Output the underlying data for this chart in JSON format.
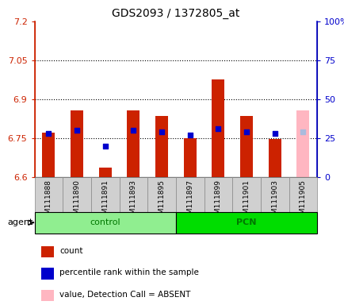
{
  "title": "GDS2093 / 1372805_at",
  "samples": [
    "GSM111888",
    "GSM111890",
    "GSM111891",
    "GSM111893",
    "GSM111895",
    "GSM111897",
    "GSM111899",
    "GSM111901",
    "GSM111903",
    "GSM111905"
  ],
  "groups": [
    "control",
    "control",
    "control",
    "control",
    "control",
    "PCN",
    "PCN",
    "PCN",
    "PCN",
    "PCN"
  ],
  "red_values": [
    6.77,
    6.855,
    6.635,
    6.855,
    6.835,
    6.75,
    6.975,
    6.835,
    6.745,
    6.855
  ],
  "blue_values": [
    28,
    30,
    20,
    30,
    29,
    27,
    31,
    29,
    28,
    29
  ],
  "absent": [
    false,
    false,
    false,
    false,
    false,
    false,
    false,
    false,
    false,
    true
  ],
  "ylim_left": [
    6.6,
    7.2
  ],
  "ylim_right": [
    0,
    100
  ],
  "yticks_left": [
    6.6,
    6.75,
    6.9,
    7.05,
    7.2
  ],
  "yticks_right": [
    0,
    25,
    50,
    75,
    100
  ],
  "ytick_labels_left": [
    "6.6",
    "6.75",
    "6.9",
    "7.05",
    "7.2"
  ],
  "ytick_labels_right": [
    "0",
    "25",
    "50",
    "75",
    "100%"
  ],
  "hlines": [
    6.75,
    6.9,
    7.05
  ],
  "bar_color_present": "#cc2200",
  "bar_color_absent": "#ffb6c1",
  "dot_color_present": "#0000cc",
  "dot_color_absent": "#aabbdd",
  "control_color_light": "#b8f0b8",
  "control_color": "#90ee90",
  "pcn_color": "#00dd00",
  "group_label_color": "#007700",
  "bar_width": 0.45,
  "tick_box_color": "#d0d0d0",
  "plot_bg": "#ffffff"
}
